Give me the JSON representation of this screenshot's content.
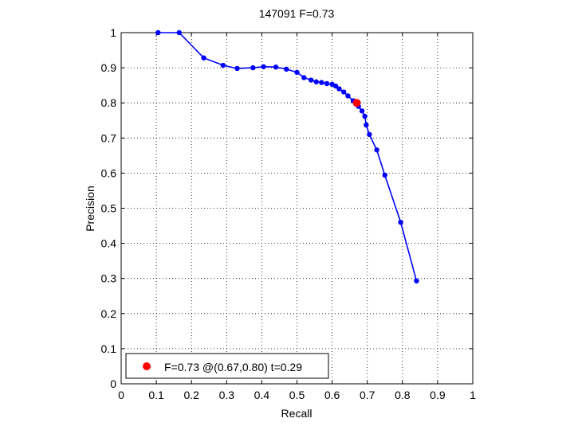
{
  "chart_data": {
    "type": "line",
    "title": "147091 F=0.73",
    "xlabel": "Recall",
    "ylabel": "Precision",
    "xlim": [
      0,
      1
    ],
    "ylim": [
      0,
      1
    ],
    "xticks": [
      "0",
      "0.1",
      "0.2",
      "0.3",
      "0.4",
      "0.5",
      "0.6",
      "0.7",
      "0.8",
      "0.9",
      "1"
    ],
    "yticks": [
      "0",
      "0.1",
      "0.2",
      "0.3",
      "0.4",
      "0.5",
      "0.6",
      "0.7",
      "0.8",
      "0.9",
      "1"
    ],
    "grid": true,
    "legend_position": "bottom-left",
    "series": [
      {
        "color": "#0000ff",
        "points": [
          [
            0.105,
            1.0
          ],
          [
            0.165,
            1.0
          ],
          [
            0.235,
            0.928
          ],
          [
            0.29,
            0.907
          ],
          [
            0.33,
            0.898
          ],
          [
            0.375,
            0.9
          ],
          [
            0.405,
            0.903
          ],
          [
            0.44,
            0.902
          ],
          [
            0.47,
            0.896
          ],
          [
            0.5,
            0.887
          ],
          [
            0.52,
            0.872
          ],
          [
            0.54,
            0.865
          ],
          [
            0.555,
            0.86
          ],
          [
            0.57,
            0.858
          ],
          [
            0.585,
            0.855
          ],
          [
            0.6,
            0.853
          ],
          [
            0.61,
            0.848
          ],
          [
            0.62,
            0.84
          ],
          [
            0.633,
            0.831
          ],
          [
            0.645,
            0.82
          ],
          [
            0.66,
            0.806
          ],
          [
            0.675,
            0.79
          ],
          [
            0.685,
            0.777
          ],
          [
            0.693,
            0.762
          ],
          [
            0.697,
            0.737
          ],
          [
            0.706,
            0.71
          ],
          [
            0.727,
            0.666
          ],
          [
            0.75,
            0.594
          ],
          [
            0.795,
            0.46
          ],
          [
            0.84,
            0.293
          ]
        ]
      }
    ],
    "highlight": {
      "color": "#ff0000",
      "x": 0.67,
      "y": 0.8,
      "legend_label": "F=0.73 @(0.67,0.80) t=0.29"
    }
  }
}
